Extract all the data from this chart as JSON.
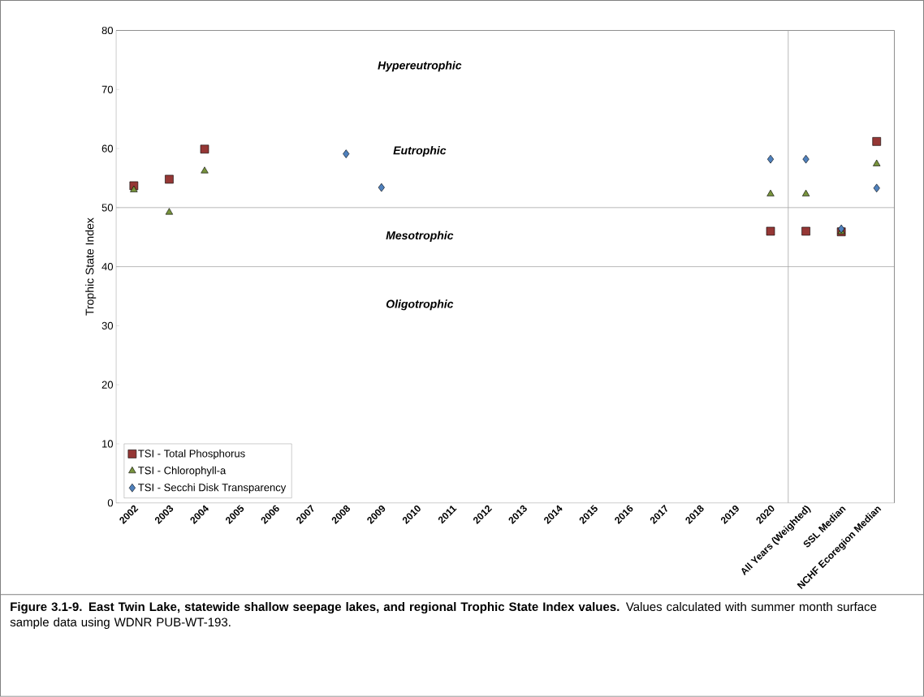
{
  "chart_data": {
    "type": "scatter",
    "ylabel": "Trophic State Index",
    "categories": [
      "2002",
      "2003",
      "2004",
      "2005",
      "2006",
      "2007",
      "2008",
      "2009",
      "2010",
      "2011",
      "2012",
      "2013",
      "2014",
      "2015",
      "2016",
      "2017",
      "2018",
      "2019",
      "2020",
      "All Years (Weighted)",
      "SSL Median",
      "NCHF Ecoregion Median"
    ],
    "series": [
      {
        "name": "TSI - Total Phosphorus",
        "color": "#953735",
        "marker": "square",
        "values": [
          53.7,
          54.8,
          59.9,
          null,
          null,
          null,
          null,
          null,
          null,
          null,
          null,
          null,
          null,
          null,
          null,
          null,
          null,
          null,
          46.0,
          46.0,
          45.9,
          61.2
        ]
      },
      {
        "name": "TSI - Chlorophyll-a",
        "color": "#77933c",
        "marker": "triangle",
        "values": [
          53.0,
          49.2,
          56.2,
          null,
          null,
          null,
          null,
          null,
          null,
          null,
          null,
          null,
          null,
          null,
          null,
          null,
          null,
          null,
          52.3,
          52.3,
          45.9,
          57.4
        ]
      },
      {
        "name": "TSI - Secchi Disk Transparency",
        "color": "#4f81bd",
        "marker": "diamond",
        "values": [
          null,
          null,
          null,
          null,
          null,
          null,
          59.1,
          53.4,
          null,
          null,
          null,
          null,
          null,
          null,
          null,
          null,
          null,
          null,
          58.2,
          58.2,
          46.4,
          53.3
        ]
      }
    ],
    "ylim": [
      0,
      80
    ],
    "yticks": [
      0,
      10,
      20,
      30,
      40,
      50,
      60,
      70,
      80
    ],
    "ref_lines": [
      {
        "axis": "y",
        "value": 50,
        "color": "#a6a6a6"
      },
      {
        "axis": "y",
        "value": 40,
        "color": "#a6a6a6"
      }
    ],
    "annotations": [
      "Hypereutrophic",
      "Eutrophic",
      "Mesotrophic",
      "Oligotrophic",
      "**Figure 3.1-9.  East Twin Lake, statewide shallow seepage lakes, and regional Trophic State Index values.**  Values calculated with summer month surface sample data using WDNR PUB-WT-193."
    ],
    "legend": "bottom left"
  }
}
